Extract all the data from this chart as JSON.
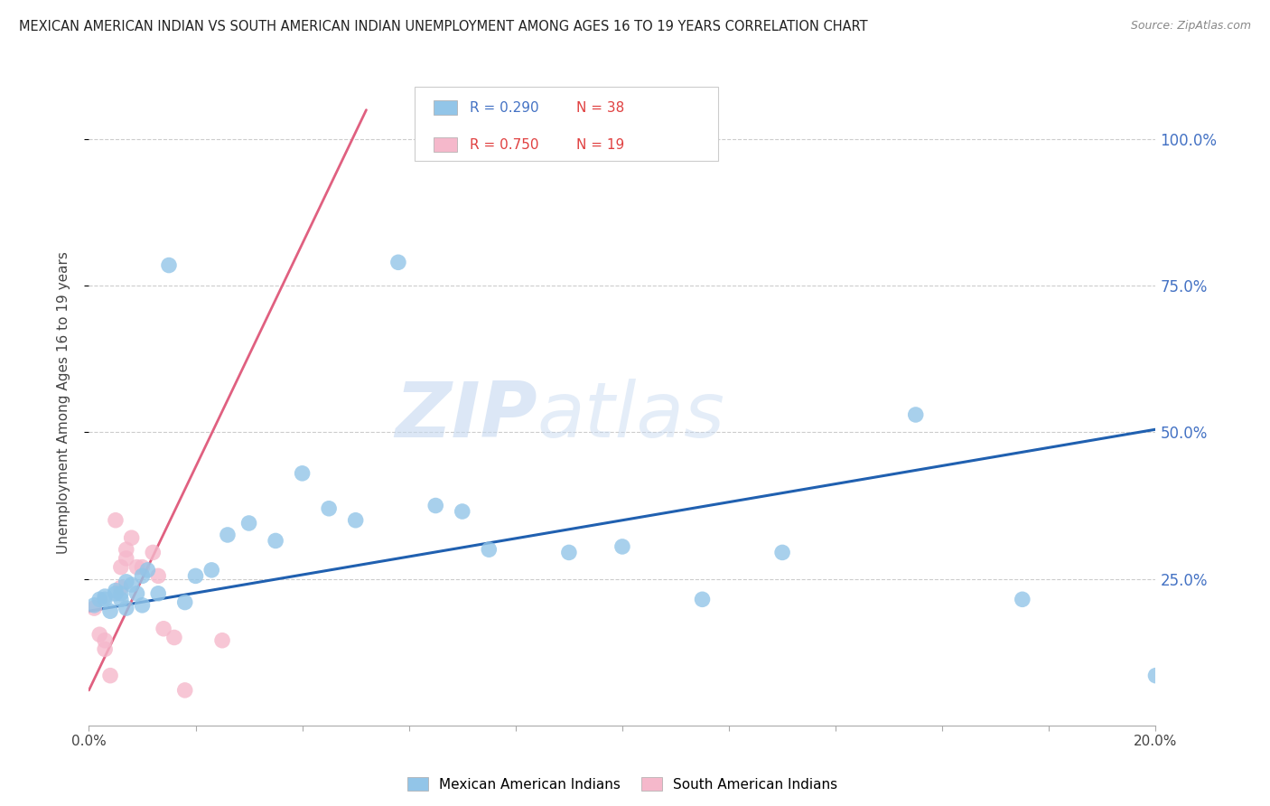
{
  "title": "MEXICAN AMERICAN INDIAN VS SOUTH AMERICAN INDIAN UNEMPLOYMENT AMONG AGES 16 TO 19 YEARS CORRELATION CHART",
  "source": "Source: ZipAtlas.com",
  "ylabel": "Unemployment Among Ages 16 to 19 years",
  "y_tick_labels": [
    "100.0%",
    "75.0%",
    "50.0%",
    "25.0%"
  ],
  "y_tick_values": [
    1.0,
    0.75,
    0.5,
    0.25
  ],
  "legend_blue_R": "R = 0.290",
  "legend_blue_N": "N = 38",
  "legend_pink_R": "R = 0.750",
  "legend_pink_N": "N = 19",
  "legend_blue_label": "Mexican American Indians",
  "legend_pink_label": "South American Indians",
  "watermark_zip": "ZIP",
  "watermark_atlas": "atlas",
  "blue_color": "#92c5e8",
  "blue_line_color": "#2060b0",
  "pink_color": "#f5b8cb",
  "pink_line_color": "#e06080",
  "text_blue": "#4472c4",
  "text_red": "#e04040",
  "grid_color": "#cccccc",
  "blue_scatter_x": [
    0.001,
    0.002,
    0.003,
    0.003,
    0.004,
    0.005,
    0.005,
    0.006,
    0.006,
    0.007,
    0.007,
    0.008,
    0.009,
    0.01,
    0.01,
    0.011,
    0.013,
    0.015,
    0.018,
    0.02,
    0.023,
    0.026,
    0.03,
    0.035,
    0.04,
    0.045,
    0.05,
    0.058,
    0.065,
    0.07,
    0.075,
    0.09,
    0.1,
    0.115,
    0.13,
    0.155,
    0.175,
    0.2
  ],
  "blue_scatter_y": [
    0.205,
    0.215,
    0.215,
    0.22,
    0.195,
    0.225,
    0.23,
    0.215,
    0.225,
    0.2,
    0.245,
    0.24,
    0.225,
    0.205,
    0.255,
    0.265,
    0.225,
    0.785,
    0.21,
    0.255,
    0.265,
    0.325,
    0.345,
    0.315,
    0.43,
    0.37,
    0.35,
    0.79,
    0.375,
    0.365,
    0.3,
    0.295,
    0.305,
    0.215,
    0.295,
    0.53,
    0.215,
    0.085
  ],
  "pink_scatter_x": [
    0.001,
    0.002,
    0.003,
    0.003,
    0.004,
    0.005,
    0.006,
    0.006,
    0.007,
    0.007,
    0.008,
    0.009,
    0.01,
    0.012,
    0.013,
    0.014,
    0.016,
    0.018,
    0.025
  ],
  "pink_scatter_y": [
    0.2,
    0.155,
    0.13,
    0.145,
    0.085,
    0.35,
    0.27,
    0.235,
    0.285,
    0.3,
    0.32,
    0.27,
    0.27,
    0.295,
    0.255,
    0.165,
    0.15,
    0.06,
    0.145
  ],
  "blue_trend_x": [
    0.0,
    0.2
  ],
  "blue_trend_y": [
    0.195,
    0.505
  ],
  "pink_trend_x": [
    0.0,
    0.052
  ],
  "pink_trend_y": [
    0.06,
    1.05
  ],
  "xlim": [
    0.0,
    0.2
  ],
  "ylim": [
    0.0,
    1.1
  ]
}
